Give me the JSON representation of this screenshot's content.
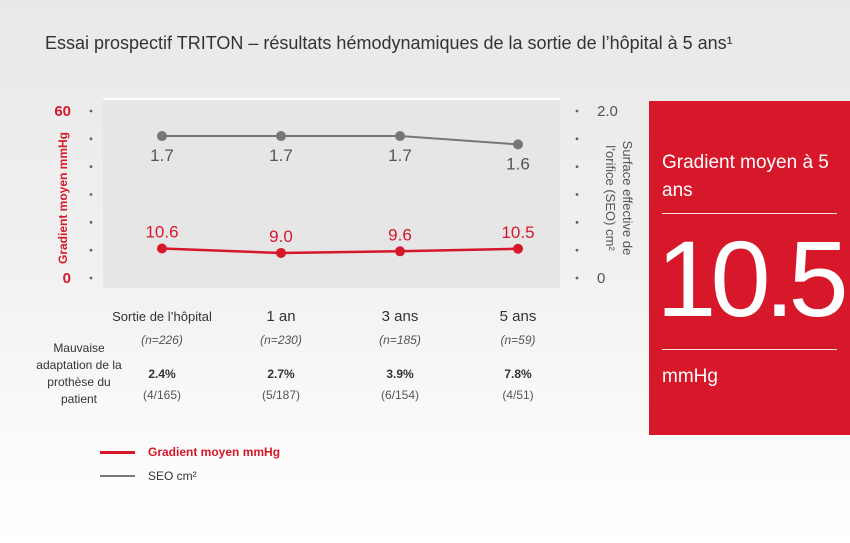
{
  "title": "Essai prospectif TRITON – résultats hémodynamiques de la sortie de l’hôpital à 5 ans¹",
  "chart_data": {
    "type": "line",
    "categories": [
      "Sortie de l’hôpital",
      "1 an",
      "3 ans",
      "5 ans"
    ],
    "n_labels": [
      "(n=226)",
      "(n=230)",
      "(n=185)",
      "(n=59)"
    ],
    "series": [
      {
        "name": "Gradient moyen mmHg",
        "axis": "left",
        "color": "#d7182a",
        "values": [
          10.6,
          9.0,
          9.6,
          10.5
        ],
        "labels": [
          "10.6",
          "9.0",
          "9.6",
          "10.5"
        ]
      },
      {
        "name": "SEO cm²",
        "axis": "right",
        "color": "#777777",
        "values": [
          1.7,
          1.7,
          1.7,
          1.6
        ],
        "labels": [
          "1.7",
          "1.7",
          "1.7",
          "1.6"
        ]
      }
    ],
    "left_axis": {
      "label": "Gradient moyen mmHg",
      "ylim": [
        0,
        60
      ],
      "ticks": [
        "60",
        "0"
      ]
    },
    "right_axis": {
      "label_line1": "Surface effective de",
      "label_line2": "l’orifice (SEO) cm²",
      "ylim": [
        0,
        2.0
      ],
      "ticks": [
        "2.0",
        "0"
      ]
    },
    "pp_mismatch": {
      "label": "Mauvaise adaptation de la prothèse du patient",
      "percents": [
        "2.4%",
        "2.7%",
        "3.9%",
        "7.8%"
      ],
      "fractions": [
        "(4/165)",
        "(5/187)",
        "(6/154)",
        "(4/51)"
      ]
    }
  },
  "callout": {
    "label": "Gradient moyen à 5 ans",
    "value": "10.5",
    "unit": "mmHg"
  },
  "legend": [
    {
      "label": "Gradient moyen mmHg",
      "color": "#d7182a"
    },
    {
      "label": "SEO cm²",
      "color": "#777777"
    }
  ]
}
